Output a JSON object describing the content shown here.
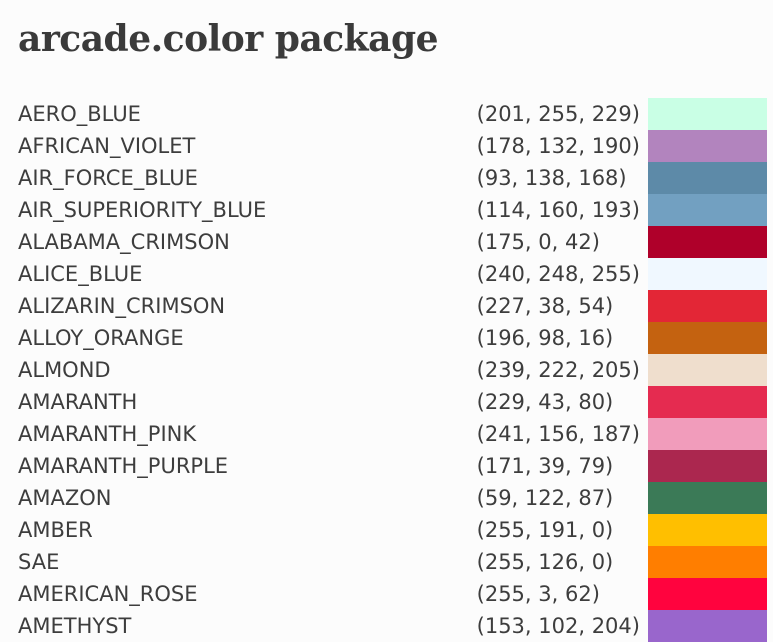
{
  "page": {
    "title": "arcade.color package"
  },
  "colors": [
    {
      "name": "AERO_BLUE",
      "rgb": "(201, 255, 229)",
      "hex": "#c9ffe5"
    },
    {
      "name": "AFRICAN_VIOLET",
      "rgb": "(178, 132, 190)",
      "hex": "#b284be"
    },
    {
      "name": "AIR_FORCE_BLUE",
      "rgb": "(93, 138, 168)",
      "hex": "#5d8aa8"
    },
    {
      "name": "AIR_SUPERIORITY_BLUE",
      "rgb": "(114, 160, 193)",
      "hex": "#72a0c1"
    },
    {
      "name": "ALABAMA_CRIMSON",
      "rgb": "(175, 0, 42)",
      "hex": "#af002a"
    },
    {
      "name": "ALICE_BLUE",
      "rgb": "(240, 248, 255)",
      "hex": "#f0f8ff"
    },
    {
      "name": "ALIZARIN_CRIMSON",
      "rgb": "(227, 38, 54)",
      "hex": "#e32636"
    },
    {
      "name": "ALLOY_ORANGE",
      "rgb": "(196, 98, 16)",
      "hex": "#c46210"
    },
    {
      "name": "ALMOND",
      "rgb": "(239, 222, 205)",
      "hex": "#efdecd"
    },
    {
      "name": "AMARANTH",
      "rgb": "(229, 43, 80)",
      "hex": "#e52b50"
    },
    {
      "name": "AMARANTH_PINK",
      "rgb": "(241, 156, 187)",
      "hex": "#f19cbb"
    },
    {
      "name": "AMARANTH_PURPLE",
      "rgb": "(171, 39, 79)",
      "hex": "#ab274f"
    },
    {
      "name": "AMAZON",
      "rgb": "(59, 122, 87)",
      "hex": "#3b7a57"
    },
    {
      "name": "AMBER",
      "rgb": "(255, 191, 0)",
      "hex": "#ffbf00"
    },
    {
      "name": "SAE",
      "rgb": "(255, 126, 0)",
      "hex": "#ff7e00"
    },
    {
      "name": "AMERICAN_ROSE",
      "rgb": "(255, 3, 62)",
      "hex": "#ff033e"
    },
    {
      "name": "AMETHYST",
      "rgb": "(153, 102, 204)",
      "hex": "#9966cc"
    }
  ]
}
